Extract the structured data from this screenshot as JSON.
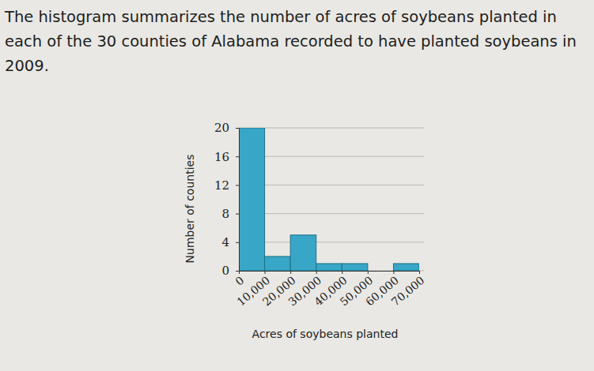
{
  "chart_data": {
    "type": "histogram",
    "title": "The histogram summarizes the number of acres of soybeans planted in each of the 30 counties of Alabama recorded to have planted soybeans in 2009.",
    "x_label": "Acres of soybeans planted",
    "y_label": "Number of counties",
    "bins": [
      0,
      10000,
      20000,
      30000,
      40000,
      50000,
      60000,
      70000
    ],
    "values": [
      20,
      2,
      5,
      1,
      1,
      0,
      1
    ],
    "color": "#38a6c6",
    "xlim": [
      0,
      70000
    ],
    "xticks": [
      {
        "value": 0,
        "label": "0"
      },
      {
        "value": 10000,
        "label": "10,000"
      },
      {
        "value": 20000,
        "label": "20,000"
      },
      {
        "value": 30000,
        "label": "30,000"
      },
      {
        "value": 40000,
        "label": "40,000"
      },
      {
        "value": 50000,
        "label": "50,000"
      },
      {
        "value": 60000,
        "label": "60,000"
      },
      {
        "value": 70000,
        "label": "70,000"
      }
    ],
    "ylim": [
      0,
      20
    ],
    "yticks": [
      0,
      4,
      8,
      12,
      16,
      20
    ],
    "grid": true
  }
}
